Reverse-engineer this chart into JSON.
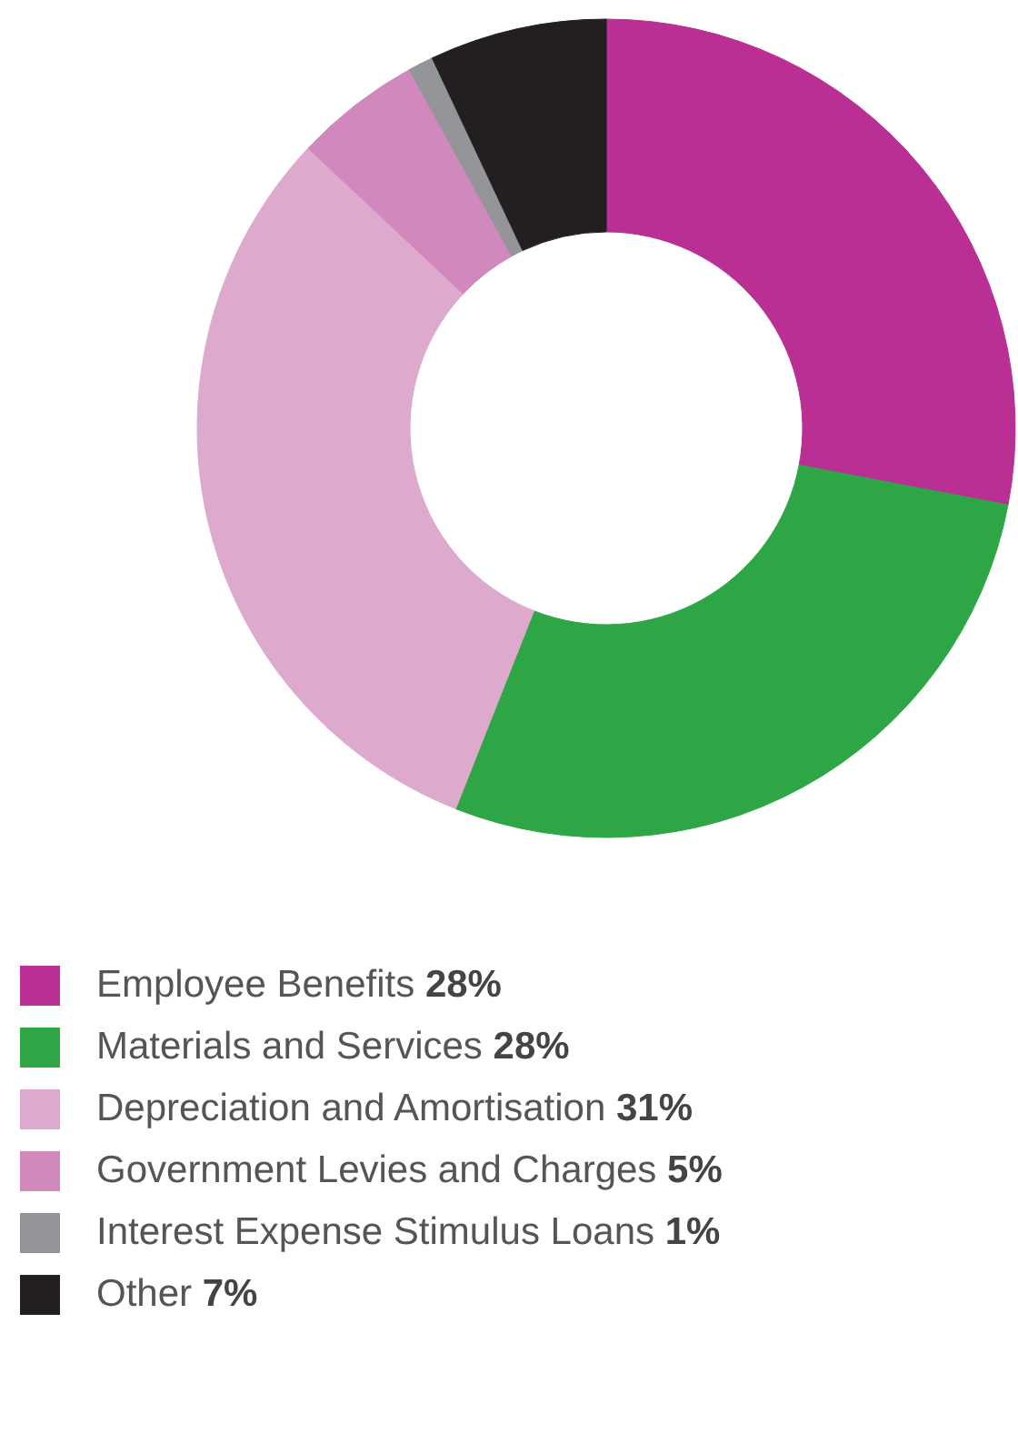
{
  "chart_data": {
    "type": "donut",
    "categories": [
      "Employee Benefits",
      "Materials and Services",
      "Depreciation and Amortisation",
      "Government Levies and Charges",
      "Interest Expense Stimulus Loans",
      "Other"
    ],
    "values": [
      28,
      28,
      31,
      5,
      1,
      7
    ],
    "colors": [
      "#b92f94",
      "#2ea645",
      "#ddaacd",
      "#d088bd",
      "#939598",
      "#231f20"
    ],
    "value_labels": [
      "28%",
      "28%",
      "31%",
      "5%",
      "1%",
      "7%"
    ],
    "legend": "bottom"
  }
}
